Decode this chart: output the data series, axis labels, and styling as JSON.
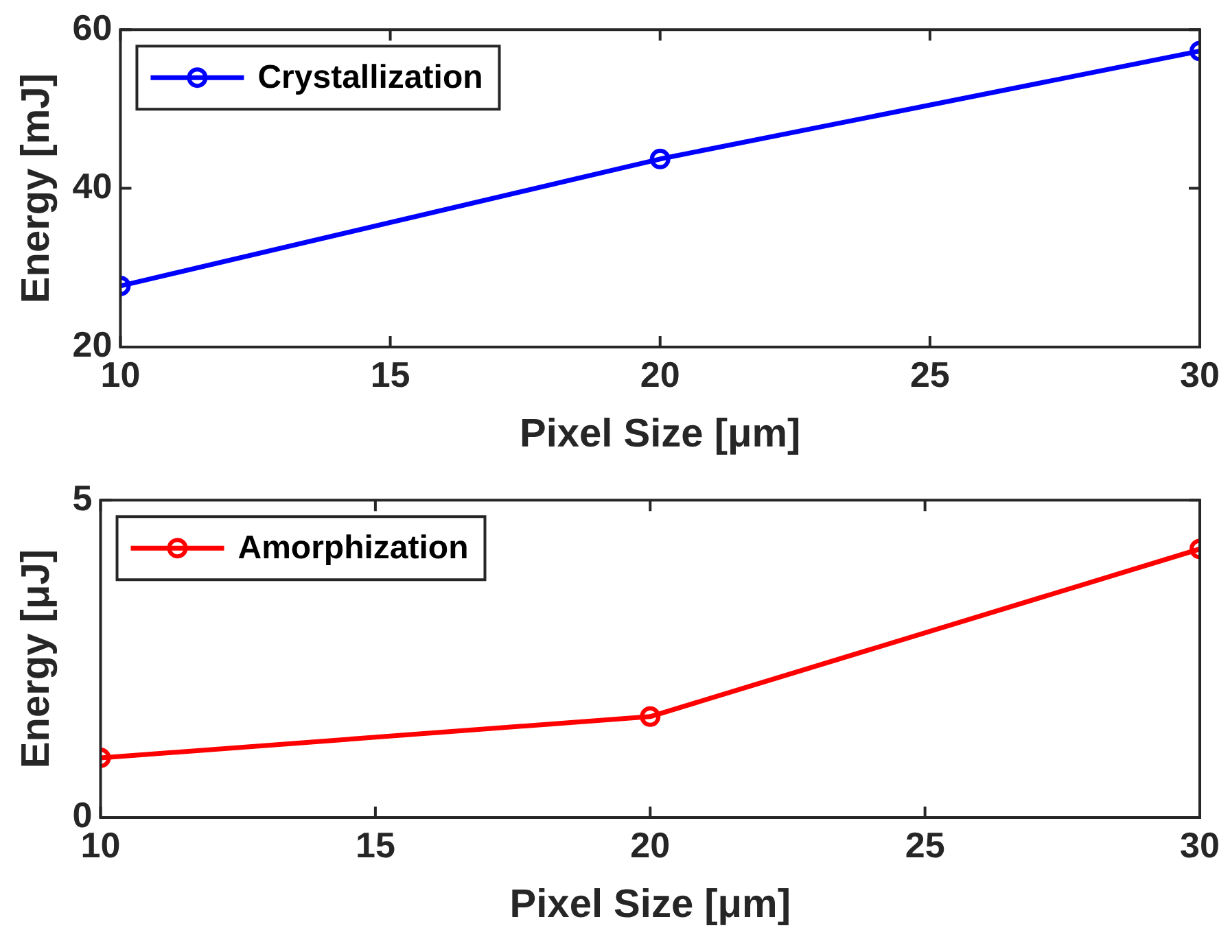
{
  "chart_data": [
    {
      "type": "line",
      "x": [
        10,
        20,
        30
      ],
      "series": [
        {
          "name": "Crystallization",
          "color": "#0000ff",
          "values": [
            27.7,
            43.7,
            57.3
          ]
        }
      ],
      "xlim": [
        10,
        30
      ],
      "xticks": [
        10,
        15,
        20,
        25,
        30
      ],
      "ylim": [
        20,
        60
      ],
      "yticks": [
        20,
        40,
        60
      ],
      "xlabel": "Pixel Size [μm]",
      "ylabel": "Energy [mJ]",
      "legend": "top left",
      "marker": "circle",
      "line_style": "solid",
      "grid": false
    },
    {
      "type": "line",
      "x": [
        10,
        20,
        30
      ],
      "series": [
        {
          "name": "Amorphization",
          "color": "#ff0000",
          "values": [
            0.94,
            1.59,
            4.23
          ]
        }
      ],
      "xlim": [
        10,
        30
      ],
      "xticks": [
        10,
        15,
        20,
        25,
        30
      ],
      "ylim": [
        0,
        5
      ],
      "yticks": [
        0,
        5
      ],
      "xlabel": "Pixel Size [μm]",
      "ylabel": "Energy [μJ]",
      "legend": "top left",
      "marker": "circle",
      "line_style": "solid",
      "grid": false
    }
  ]
}
